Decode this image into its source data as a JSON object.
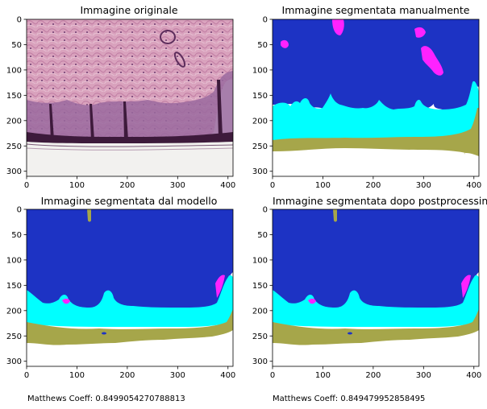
{
  "figure": {
    "panels": [
      {
        "id": "p0",
        "title": "Immagine originale",
        "kind": "histology"
      },
      {
        "id": "p1",
        "title": "Immagine segmentata manualmente",
        "kind": "manual"
      },
      {
        "id": "p2",
        "title": "Immagine segmentata dal modello",
        "kind": "model"
      },
      {
        "id": "p3",
        "title": "Immagine segmentata dopo postprocessing",
        "kind": "post"
      }
    ],
    "x_ticks": [
      "0",
      "100",
      "200",
      "300",
      "400"
    ],
    "y_ticks": [
      "0",
      "50",
      "100",
      "150",
      "200",
      "250",
      "300"
    ],
    "coeff_left": "Matthews Coeff: 0.8499054270788813",
    "coeff_right": "Matthews Coeff: 0.849479952858495",
    "colors": {
      "background_class": "#1d33c4",
      "dermis_border_class": "#00ffff",
      "epidermis_class": "#a6a64a",
      "vessel_class": "#ff22ff",
      "white": "#ffffff"
    }
  },
  "chart_data": {
    "type": "image-grid",
    "rows": 2,
    "cols": 2,
    "x_range": [
      0,
      410
    ],
    "y_range": [
      310,
      0
    ],
    "x_ticks": [
      0,
      100,
      200,
      300,
      400
    ],
    "y_ticks": [
      0,
      50,
      100,
      150,
      200,
      250,
      300
    ]
  }
}
